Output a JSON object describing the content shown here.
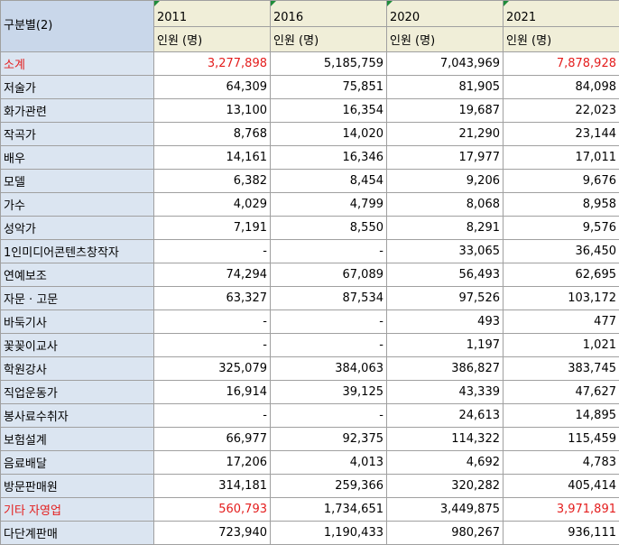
{
  "header": {
    "corner": "구분별(2)",
    "years": [
      "2011",
      "2016",
      "2020",
      "2021"
    ],
    "unit": "인원 (명)"
  },
  "rows": [
    {
      "label": "소계",
      "values": [
        "3,277,898",
        "5,185,759",
        "7,043,969",
        "7,878,928"
      ]
    },
    {
      "label": "저술가",
      "values": [
        "64,309",
        "75,851",
        "81,905",
        "84,098"
      ]
    },
    {
      "label": "화가관련",
      "values": [
        "13,100",
        "16,354",
        "19,687",
        "22,023"
      ]
    },
    {
      "label": "작곡가",
      "values": [
        "8,768",
        "14,020",
        "21,290",
        "23,144"
      ]
    },
    {
      "label": "배우",
      "values": [
        "14,161",
        "16,346",
        "17,977",
        "17,011"
      ]
    },
    {
      "label": "모델",
      "values": [
        "6,382",
        "8,454",
        "9,206",
        "9,676"
      ]
    },
    {
      "label": "가수",
      "values": [
        "4,029",
        "4,799",
        "8,068",
        "8,958"
      ]
    },
    {
      "label": "성악가",
      "values": [
        "7,191",
        "8,550",
        "8,291",
        "9,576"
      ]
    },
    {
      "label": "1인미디어콘텐츠창작자",
      "values": [
        "-",
        "-",
        "33,065",
        "36,450"
      ]
    },
    {
      "label": "연예보조",
      "values": [
        "74,294",
        "67,089",
        "56,493",
        "62,695"
      ]
    },
    {
      "label": "자문 · 고문",
      "values": [
        "63,327",
        "87,534",
        "97,526",
        "103,172"
      ]
    },
    {
      "label": "바둑기사",
      "values": [
        "-",
        "-",
        "493",
        "477"
      ]
    },
    {
      "label": "꽃꽂이교사",
      "values": [
        "-",
        "-",
        "1,197",
        "1,021"
      ]
    },
    {
      "label": "학원강사",
      "values": [
        "325,079",
        "384,063",
        "386,827",
        "383,745"
      ]
    },
    {
      "label": "직업운동가",
      "values": [
        "16,914",
        "39,125",
        "43,339",
        "47,627"
      ]
    },
    {
      "label": "봉사료수취자",
      "values": [
        "-",
        "-",
        "24,613",
        "14,895"
      ]
    },
    {
      "label": "보험설계",
      "values": [
        "66,977",
        "92,375",
        "114,322",
        "115,459"
      ]
    },
    {
      "label": "음료배달",
      "values": [
        "17,206",
        "4,013",
        "4,692",
        "4,783"
      ]
    },
    {
      "label": "방문판매원",
      "values": [
        "314,181",
        "259,366",
        "320,282",
        "405,414"
      ]
    },
    {
      "label": "기타 자영업",
      "values": [
        "560,793",
        "1,734,651",
        "3,449,875",
        "3,971,891"
      ]
    },
    {
      "label": "다단계판매",
      "values": [
        "723,940",
        "1,190,433",
        "980,267",
        "936,111"
      ]
    }
  ],
  "colors": {
    "highlight_text": "#e41d1d",
    "label_bg": "#dbe5f1",
    "header_bg": "#f0eed8",
    "corner_bg": "#c9d7ea"
  }
}
